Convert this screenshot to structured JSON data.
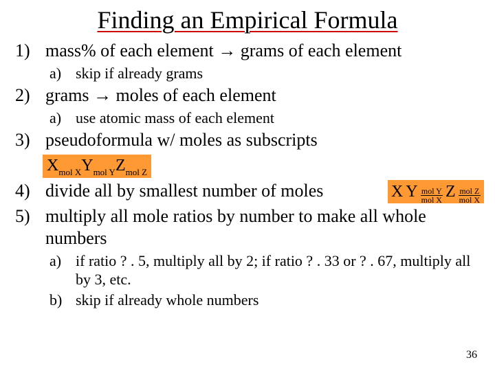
{
  "title": "Finding an Empirical Formula",
  "items": [
    {
      "text": "mass% of each element → grams of each element",
      "sub": [
        "skip if already grams"
      ]
    },
    {
      "text": "grams → moles of each element",
      "sub": [
        "use atomic mass of each element"
      ]
    },
    {
      "text": "pseudoformula w/ moles as subscripts"
    },
    {
      "text": "divide all by smallest number of moles"
    },
    {
      "text": "multiply all mole ratios by number to make all whole numbers",
      "sub": [
        "if ratio ? . 5, multiply all by 2; if ratio ? . 33 or ? . 67, multiply all by 3, etc.",
        "skip if already whole numbers"
      ]
    }
  ],
  "formula1": {
    "elems": [
      "X",
      "Y",
      "Z"
    ],
    "subs": [
      "mol X",
      "mol Y",
      "mol Z"
    ],
    "bg": "#ff9933"
  },
  "formula2": {
    "elems": [
      "X",
      "Y",
      "Z"
    ],
    "fracs": [
      {
        "num": "mol Y",
        "den": "mol X"
      },
      {
        "num": "mol Z",
        "den": "mol X"
      }
    ],
    "bg": "#ff9933"
  },
  "pagenum": "36"
}
